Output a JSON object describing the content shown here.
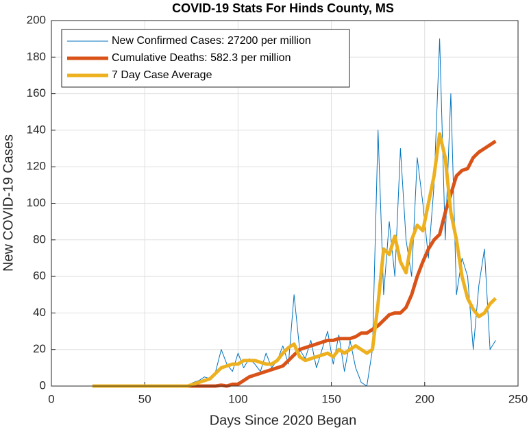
{
  "chart_data": {
    "type": "line",
    "title": "COVID-19 Stats For Hinds County, MS",
    "x_label": "Days Since 2020 Began",
    "y_label": "New COVID-19 Cases",
    "xlim": [
      0,
      250
    ],
    "xticks": [
      0,
      50,
      100,
      150,
      200,
      250
    ],
    "ylim": [
      0,
      200
    ],
    "yticks": [
      0,
      20,
      40,
      60,
      80,
      100,
      120,
      140,
      160,
      180,
      200
    ],
    "grid": true,
    "legend": "top-left",
    "x": [
      22,
      25,
      28,
      31,
      34,
      37,
      40,
      43,
      46,
      49,
      52,
      55,
      58,
      61,
      64,
      67,
      70,
      73,
      76,
      79,
      82,
      85,
      88,
      91,
      94,
      97,
      100,
      103,
      106,
      109,
      112,
      115,
      118,
      121,
      124,
      127,
      130,
      133,
      136,
      139,
      142,
      145,
      148,
      151,
      154,
      157,
      160,
      163,
      166,
      169,
      172,
      175,
      178,
      181,
      184,
      187,
      190,
      193,
      196,
      199,
      202,
      205,
      208,
      211,
      214,
      217,
      220,
      223,
      226,
      229,
      232,
      235,
      238
    ],
    "series": [
      {
        "name": "New Confirmed Cases: 27200 per million",
        "color": "#0072bd",
        "line_width": 1,
        "values": [
          0,
          0,
          0,
          0,
          0,
          0,
          0,
          0,
          0,
          0,
          0,
          0,
          0,
          0,
          0,
          0,
          0,
          0,
          2,
          3,
          5,
          4,
          8,
          20,
          12,
          8,
          18,
          10,
          15,
          12,
          8,
          18,
          10,
          14,
          22,
          12,
          50,
          20,
          15,
          25,
          10,
          20,
          30,
          12,
          28,
          8,
          25,
          10,
          2,
          0,
          20,
          140,
          50,
          90,
          60,
          130,
          80,
          60,
          125,
          100,
          70,
          110,
          190,
          80,
          160,
          50,
          70,
          60,
          20,
          55,
          75,
          20,
          25
        ]
      },
      {
        "name": "Cumulative Deaths: 582.3 per million",
        "color": "#d95319",
        "line_width": 5,
        "values": [
          0,
          0,
          0,
          0,
          0,
          0,
          0,
          0,
          0,
          0,
          0,
          0,
          0,
          0,
          0,
          0,
          0,
          0,
          0,
          0,
          0,
          0,
          0,
          0.5,
          0,
          1,
          1,
          3,
          5,
          6,
          7,
          8,
          9,
          10,
          11,
          14,
          17,
          20,
          21,
          22,
          23,
          24,
          25,
          25,
          26,
          26,
          26,
          27,
          29,
          29,
          31,
          33,
          36,
          39,
          40,
          40,
          43,
          50,
          60,
          68,
          75,
          80,
          83,
          95,
          105,
          115,
          118,
          119,
          125,
          128,
          130,
          132,
          134
        ]
      },
      {
        "name": "7 Day Case Average",
        "color": "#edb120",
        "line_width": 5,
        "values": [
          0,
          0,
          0,
          0,
          0,
          0,
          0,
          0,
          0,
          0,
          0,
          0,
          0,
          0,
          0,
          0,
          0,
          0,
          1,
          2,
          3,
          4,
          7,
          10,
          11,
          12,
          12,
          14,
          14,
          14,
          13,
          12,
          12,
          14,
          18,
          21,
          23,
          16,
          14,
          15,
          16,
          17,
          18,
          16,
          20,
          18,
          20,
          22,
          20,
          18,
          20,
          45,
          75,
          72,
          82,
          68,
          62,
          80,
          88,
          85,
          100,
          115,
          138,
          125,
          95,
          80,
          60,
          48,
          42,
          38,
          40,
          45,
          48
        ]
      }
    ]
  }
}
